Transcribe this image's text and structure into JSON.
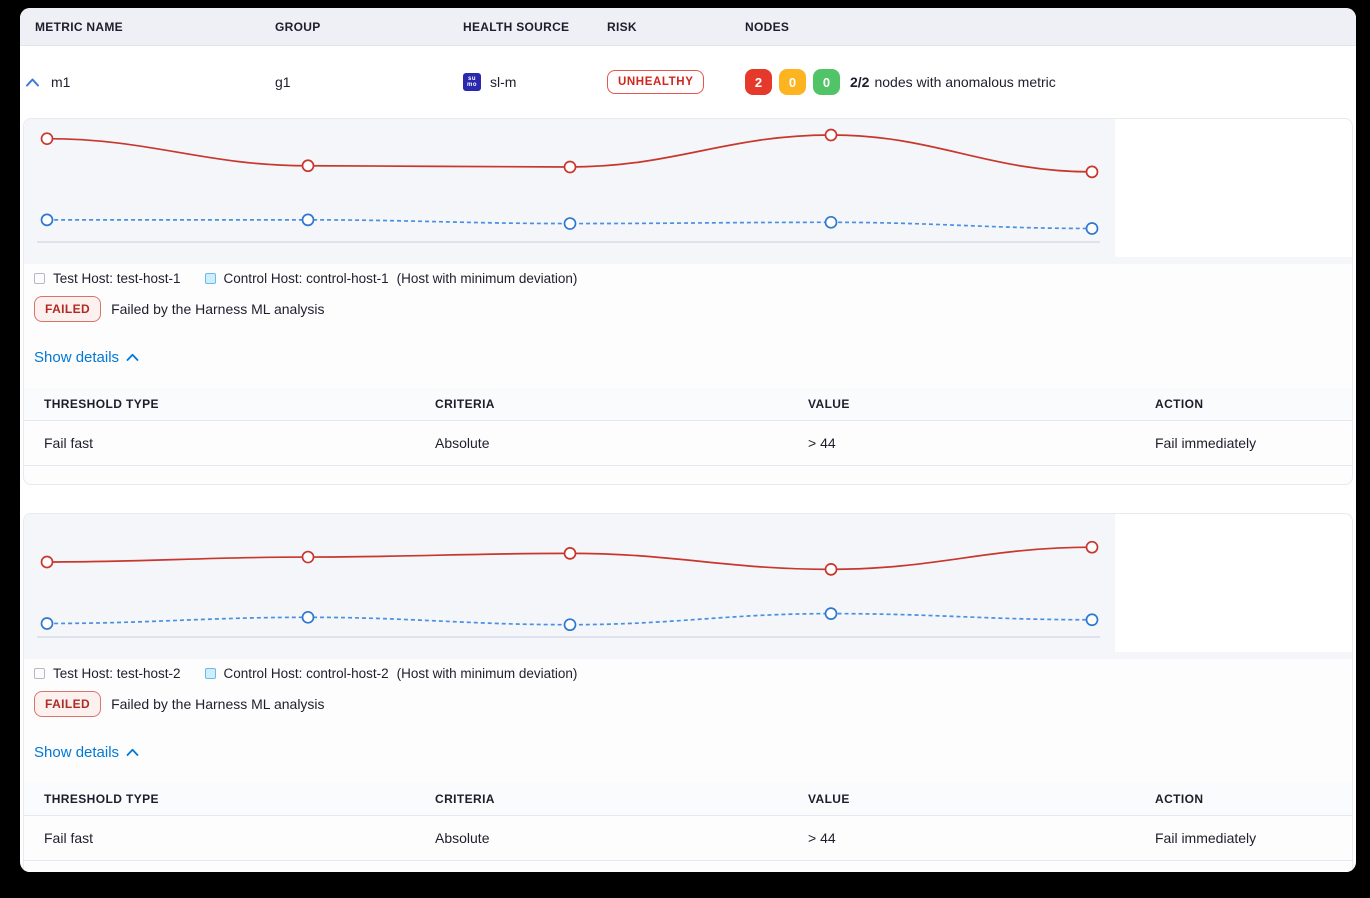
{
  "accent_colors": {
    "link_blue": "#0278d5",
    "risk_red": "#cf261d",
    "chart_red": "#c8372d",
    "chart_blue": "#4a90e2"
  },
  "table_header": {
    "metric_name": "METRIC NAME",
    "group": "GROUP",
    "health_source": "HEALTH SOURCE",
    "risk": "RISK",
    "nodes": "NODES"
  },
  "metric_row": {
    "metric_name": "m1",
    "group": "g1",
    "health_source": "sl-m",
    "health_source_icon": "sumo-logic-icon",
    "health_source_icon_text_top": "su",
    "health_source_icon_text_bottom": "mo",
    "risk_label": "UNHEALTHY",
    "node_counts": [
      {
        "value": "2",
        "color": "#e5392b",
        "status": "unhealthy"
      },
      {
        "value": "0",
        "color": "#fcb521",
        "status": "warning"
      },
      {
        "value": "0",
        "color": "#50c466",
        "status": "healthy"
      }
    ],
    "nodes_summary_bold": "2/2",
    "nodes_summary_rest": "nodes with anomalous metric"
  },
  "panels": [
    {
      "legend": {
        "test_label": "Test Host: test-host-1",
        "control_label": "Control Host: control-host-1",
        "control_note": "(Host with minimum deviation)"
      },
      "status": {
        "badge": "FAILED",
        "message": "Failed by the Harness ML analysis"
      },
      "details_toggle": "Show details",
      "table": {
        "headers": [
          "THRESHOLD TYPE",
          "CRITERIA",
          "VALUE",
          "ACTION"
        ],
        "rows": [
          [
            "Fail fast",
            "Absolute",
            "> 44",
            "Fail immediately"
          ]
        ]
      }
    },
    {
      "legend": {
        "test_label": "Test Host: test-host-2",
        "control_label": "Control Host: control-host-2",
        "control_note": "(Host with minimum deviation)"
      },
      "status": {
        "badge": "FAILED",
        "message": "Failed by the Harness ML analysis"
      },
      "details_toggle": "Show details",
      "table": {
        "headers": [
          "THRESHOLD TYPE",
          "CRITERIA",
          "VALUE",
          "ACTION"
        ],
        "rows": [
          [
            "Fail fast",
            "Absolute",
            "> 44",
            "Fail immediately"
          ]
        ]
      }
    }
  ],
  "chart_data": [
    {
      "type": "line",
      "x": [
        1,
        2,
        3,
        4,
        5
      ],
      "series": [
        {
          "name": "Test Host: test-host-1",
          "color": "#c8372d",
          "marker_color": "#c8372d",
          "line_style": "solid",
          "values": [
            84,
            62,
            61,
            87,
            57
          ]
        },
        {
          "name": "Control Host: control-host-1",
          "color": "#4a90e2",
          "marker_color": "#2f78d0",
          "line_style": "dashed",
          "values": [
            18,
            18,
            15,
            16,
            11
          ]
        }
      ],
      "ylim": [
        0,
        100
      ],
      "axes_labeled": false,
      "grid": false,
      "legend_position": "below-left"
    },
    {
      "type": "line",
      "x": [
        1,
        2,
        3,
        4,
        5
      ],
      "series": [
        {
          "name": "Test Host: test-host-2",
          "color": "#c8372d",
          "marker_color": "#c8372d",
          "line_style": "solid",
          "values": [
            61,
            65,
            68,
            55,
            73
          ]
        },
        {
          "name": "Control Host: control-host-2",
          "color": "#4a90e2",
          "marker_color": "#2f78d0",
          "line_style": "dashed",
          "values": [
            11,
            16,
            10,
            19,
            14
          ]
        }
      ],
      "ylim": [
        0,
        100
      ],
      "axes_labeled": false,
      "grid": false,
      "legend_position": "below-left"
    }
  ]
}
